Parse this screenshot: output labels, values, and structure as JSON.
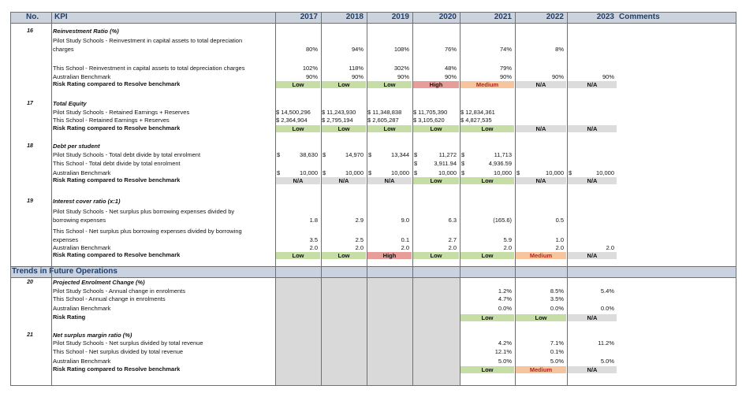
{
  "header": {
    "no": "No.",
    "kpi": "KPI",
    "years": [
      "2017",
      "2018",
      "2019",
      "2020",
      "2021",
      "2022",
      "2023"
    ],
    "comments": "Comments"
  },
  "section_future": "Trends in Future Operations",
  "kpi16": {
    "no": "16",
    "title": "Reinvestment Ratio (%)",
    "r1_label_1": "Pilot Study Schools - Reinvestment in capital assets to total depreciation",
    "r1_label_2": "charges",
    "r1_values": [
      "80%",
      "94%",
      "108%",
      "76%",
      "74%",
      "8%"
    ],
    "r2_label": "This School - Reinvestment in capital assets to total depreciation charges",
    "r2_values": [
      "102%",
      "118%",
      "302%",
      "48%",
      "79%"
    ],
    "r3_label": "Australian Benchmark",
    "r3_values": [
      "90%",
      "90%",
      "90%",
      "90%",
      "90%",
      "90%",
      "90%"
    ],
    "r4_label": "Risk Rating compared to Resolve benchmark",
    "ratings": [
      "Low",
      "Low",
      "Low",
      "High",
      "Medium",
      "N/A",
      "N/A"
    ]
  },
  "kpi17": {
    "no": "17",
    "title": "Total Equity",
    "r1_label": "Pilot Study Schools - Retained Earnings + Reserves",
    "r1_values": [
      "$ 14,500,296",
      "$ 11,243,930",
      "$ 11,348,838",
      "$ 11,705,390",
      "$  12,834,361"
    ],
    "r2_label": "This School - Retained Earnings + Reserves",
    "r2_values": [
      "$  2,364,904",
      "$  2,795,194",
      "$  2,605,287",
      "$  3,105,620",
      "$    4,827,535"
    ],
    "r3_label": "Risk Rating compared to Resolve benchmark",
    "ratings": [
      "Low",
      "Low",
      "Low",
      "Low",
      "Low",
      "N/A",
      "N/A"
    ]
  },
  "kpi18": {
    "no": "18",
    "title": "Debt per student",
    "r1_label": "Pilot Study Schools - Total debt divide by total enrolment",
    "r1_values": [
      "38,630",
      "14,970",
      "13,344",
      "11,272",
      "11,713"
    ],
    "r2_label": "This School - Total debt divide by total enrolment",
    "r2_values": [
      "3,911.94",
      "4,936.59"
    ],
    "r3_label": "Australian Benchmark",
    "r3_values": [
      "10,000",
      "10,000",
      "10,000",
      "10,000",
      "10,000",
      "10,000",
      "10,000"
    ],
    "currency": "$",
    "r4_label": "Risk Rating compared to Resolve benchmark",
    "ratings": [
      "N/A",
      "N/A",
      "N/A",
      "Low",
      "Low",
      "N/A",
      "N/A"
    ]
  },
  "kpi19": {
    "no": "19",
    "title": "Interest cover ratio (x:1)",
    "r1_label_1": "Pilot Study Schools - Net surplus plus borrowing expenses divided by",
    "r1_label_2": "borrowing expenses",
    "r1_values": [
      "1.8",
      "2.9",
      "9.0",
      "6.3",
      "(165.6)",
      "0.5"
    ],
    "r2_label_1": "This School - Net surplus plus borrowing expenses divided by borrowing",
    "r2_label_2": "expenses",
    "r2_values": [
      "3.5",
      "2.5",
      "0.1",
      "2.7",
      "5.9",
      "1.0"
    ],
    "r3_label": "Australian Benchmark",
    "r3_values": [
      "2.0",
      "2.0",
      "2.0",
      "2.0",
      "2.0",
      "2.0",
      "2.0"
    ],
    "r4_label": "Risk Rating compared to Resolve benchmark",
    "ratings": [
      "Low",
      "Low",
      "High",
      "Low",
      "Low",
      "Medium",
      "N/A"
    ]
  },
  "kpi20": {
    "no": "20",
    "title": "Projected Enrolment Change (%)",
    "r1_label": "Pilot Study Schools - Annual change in enrolments",
    "r1_values": [
      "1.2%",
      "8.5%",
      "5.4%"
    ],
    "r2_label": "This School - Annual change in enrolments",
    "r2_values": [
      "4.7%",
      "3.5%"
    ],
    "r3_label": "Australian Benchmark",
    "r3_values": [
      "0.0%",
      "0.0%",
      "0.0%"
    ],
    "r4_label": "Risk Rating",
    "ratings": [
      "Low",
      "Low",
      "N/A"
    ]
  },
  "kpi21": {
    "no": "21",
    "title": "Net surplus margin ratio (%)",
    "r1_label": "Pilot Study Schools - Net surplus divided by total revenue",
    "r1_values": [
      "4.2%",
      "7.1%",
      "11.2%"
    ],
    "r2_label": "This School - Net surplus divided by total revenue",
    "r2_values": [
      "12.1%",
      "0.1%"
    ],
    "r3_label": "Australian Benchmark",
    "r3_values": [
      "5.0%",
      "5.0%",
      "5.0%"
    ],
    "r4_label": "Risk Rating compared to Resolve benchmark",
    "ratings": [
      "Low",
      "Medium",
      "N/A"
    ]
  },
  "colors": {
    "header_bg": "#cdd3dc",
    "header_text": "#1f3f6e",
    "low": "#c6dea5",
    "high": "#e79d9a",
    "medium": "#f6c59e",
    "na": "#dcdcdc"
  }
}
